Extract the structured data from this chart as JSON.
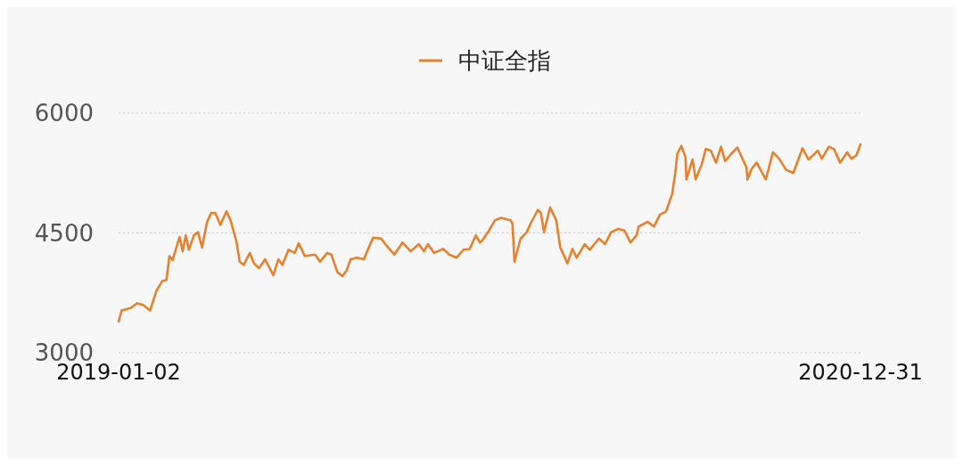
{
  "chart_data": {
    "type": "line",
    "legend": "top",
    "grid": "y",
    "ylim": [
      3000,
      6000
    ],
    "yticks": [
      3000,
      4500,
      6000
    ],
    "xlim": [
      "2019-01-02",
      "2020-12-31"
    ],
    "xticks": [
      {
        "value": "2019-01-02",
        "label": "2019-01-02"
      },
      {
        "value": "2020-12-31",
        "label": "2020-12-31"
      }
    ],
    "x": [
      "2019-01-02",
      "2019-01-05",
      "2019-01-14",
      "2019-01-20",
      "2019-01-26",
      "2019-02-02",
      "2019-02-08",
      "2019-02-14",
      "2019-02-18",
      "2019-02-21",
      "2019-02-24",
      "2019-03-03",
      "2019-03-06",
      "2019-03-09",
      "2019-03-12",
      "2019-03-17",
      "2019-03-21",
      "2019-03-25",
      "2019-03-30",
      "2019-04-03",
      "2019-04-07",
      "2019-04-12",
      "2019-04-18",
      "2019-04-22",
      "2019-04-28",
      "2019-05-01",
      "2019-05-05",
      "2019-05-11",
      "2019-05-15",
      "2019-05-20",
      "2019-05-26",
      "2019-06-03",
      "2019-06-08",
      "2019-06-12",
      "2019-06-18",
      "2019-06-24",
      "2019-06-28",
      "2019-07-04",
      "2019-07-14",
      "2019-07-19",
      "2019-07-26",
      "2019-07-30",
      "2019-08-05",
      "2019-08-10",
      "2019-08-14",
      "2019-08-18",
      "2019-08-24",
      "2019-08-31",
      "2019-09-09",
      "2019-09-17",
      "2019-09-21",
      "2019-09-30",
      "2019-10-08",
      "2019-10-16",
      "2019-10-24",
      "2019-10-29",
      "2019-11-02",
      "2019-11-08",
      "2019-11-17",
      "2019-11-23",
      "2019-11-30",
      "2019-12-07",
      "2019-12-13",
      "2019-12-19",
      "2019-12-23",
      "2019-12-25",
      "2019-12-31",
      "2020-01-07",
      "2020-01-13",
      "2020-01-22",
      "2020-01-24",
      "2020-01-26",
      "2020-02-01",
      "2020-02-07",
      "2020-02-11",
      "2020-02-18",
      "2020-02-21",
      "2020-02-24",
      "2020-03-01",
      "2020-03-07",
      "2020-03-11",
      "2020-03-18",
      "2020-03-23",
      "2020-03-27",
      "2020-04-04",
      "2020-04-09",
      "2020-04-18",
      "2020-04-24",
      "2020-04-30",
      "2020-05-07",
      "2020-05-13",
      "2020-05-19",
      "2020-05-25",
      "2020-05-27",
      "2020-06-05",
      "2020-06-11",
      "2020-06-17",
      "2020-06-23",
      "2020-06-29",
      "2020-07-02",
      "2020-07-04",
      "2020-07-08",
      "2020-07-12",
      "2020-07-13",
      "2020-07-19",
      "2020-07-22",
      "2020-07-28",
      "2020-08-01",
      "2020-08-06",
      "2020-08-11",
      "2020-08-16",
      "2020-08-20",
      "2020-08-26",
      "2020-09-01",
      "2020-09-10",
      "2020-09-11",
      "2020-09-15",
      "2020-09-20",
      "2020-09-29",
      "2020-10-06",
      "2020-10-12",
      "2020-10-19",
      "2020-10-26",
      "2020-11-04",
      "2020-11-10",
      "2020-11-19",
      "2020-11-23",
      "2020-11-30",
      "2020-12-05",
      "2020-12-11",
      "2020-12-18",
      "2020-12-22",
      "2020-12-27",
      "2020-12-31"
    ],
    "series": [
      {
        "name": "中证全指",
        "color": "#e8802c",
        "values": [
          3390,
          3530,
          3560,
          3620,
          3600,
          3530,
          3770,
          3900,
          3910,
          4210,
          4160,
          4450,
          4270,
          4470,
          4290,
          4470,
          4510,
          4320,
          4640,
          4750,
          4750,
          4600,
          4770,
          4660,
          4380,
          4140,
          4100,
          4250,
          4120,
          4060,
          4170,
          3970,
          4170,
          4100,
          4290,
          4250,
          4370,
          4210,
          4230,
          4140,
          4250,
          4230,
          4010,
          3960,
          4030,
          4170,
          4190,
          4170,
          4440,
          4430,
          4360,
          4230,
          4380,
          4270,
          4360,
          4270,
          4360,
          4250,
          4300,
          4230,
          4190,
          4290,
          4300,
          4470,
          4380,
          4400,
          4510,
          4660,
          4690,
          4660,
          4620,
          4140,
          4430,
          4510,
          4620,
          4790,
          4750,
          4510,
          4820,
          4660,
          4320,
          4120,
          4300,
          4190,
          4360,
          4290,
          4430,
          4360,
          4510,
          4550,
          4530,
          4380,
          4470,
          4580,
          4640,
          4580,
          4730,
          4770,
          4990,
          5250,
          5490,
          5590,
          5450,
          5170,
          5420,
          5170,
          5360,
          5550,
          5530,
          5380,
          5580,
          5400,
          5490,
          5570,
          5320,
          5170,
          5300,
          5380,
          5170,
          5510,
          5430,
          5290,
          5250,
          5560,
          5420,
          5530,
          5430,
          5580,
          5550,
          5380,
          5510,
          5430,
          5470,
          5610
        ]
      }
    ]
  }
}
